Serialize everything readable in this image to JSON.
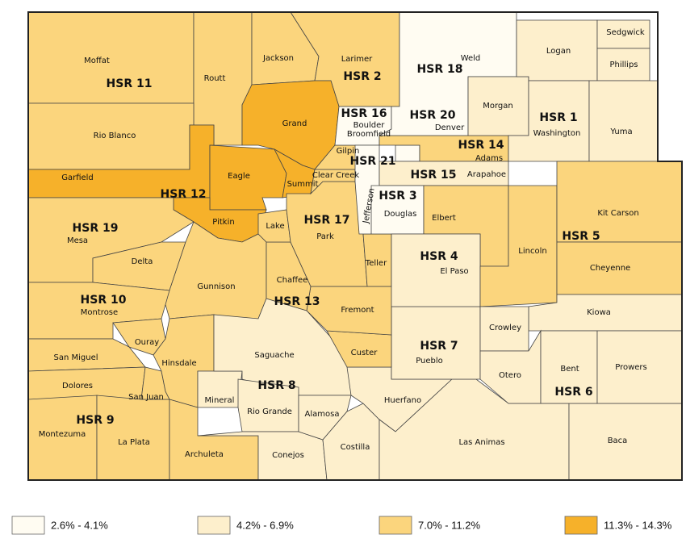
{
  "legend": [
    {
      "label": "2.6% - 4.1%",
      "color": "#fffcf2"
    },
    {
      "label": "4.2% - 6.9%",
      "color": "#fdefcc"
    },
    {
      "label": "7.0% - 11.2%",
      "color": "#fbd57d"
    },
    {
      "label": "11.3% - 14.3%",
      "color": "#f6b12a"
    }
  ],
  "counties": [
    {
      "name": "Moffat",
      "class": 2
    },
    {
      "name": "Routt",
      "class": 2
    },
    {
      "name": "Rio Blanco",
      "class": 2
    },
    {
      "name": "Garfield",
      "class": 3
    },
    {
      "name": "Jackson",
      "class": 2
    },
    {
      "name": "Larimer",
      "class": 2
    },
    {
      "name": "Grand",
      "class": 3
    },
    {
      "name": "Eagle",
      "class": 3
    },
    {
      "name": "Summit",
      "class": 3
    },
    {
      "name": "Pitkin",
      "class": 3
    },
    {
      "name": "Mesa",
      "class": 2
    },
    {
      "name": "Delta",
      "class": 2
    },
    {
      "name": "Gunnison",
      "class": 2
    },
    {
      "name": "Montrose",
      "class": 2
    },
    {
      "name": "Ouray",
      "class": 2
    },
    {
      "name": "San Miguel",
      "class": 2
    },
    {
      "name": "Dolores",
      "class": 2
    },
    {
      "name": "Montezuma",
      "class": 2
    },
    {
      "name": "La Plata",
      "class": 2
    },
    {
      "name": "San Juan",
      "class": 2
    },
    {
      "name": "Hinsdale",
      "class": 2
    },
    {
      "name": "Archuleta",
      "class": 2
    },
    {
      "name": "Mineral",
      "class": 1
    },
    {
      "name": "Saguache",
      "class": 1
    },
    {
      "name": "Rio Grande",
      "class": 1
    },
    {
      "name": "Conejos",
      "class": 1
    },
    {
      "name": "Alamosa",
      "class": 1
    },
    {
      "name": "Costilla",
      "class": 1
    },
    {
      "name": "Huerfano",
      "class": 1
    },
    {
      "name": "Las Animas",
      "class": 1
    },
    {
      "name": "Baca",
      "class": 1
    },
    {
      "name": "Pueblo",
      "class": 1
    },
    {
      "name": "Custer",
      "class": 2
    },
    {
      "name": "Fremont",
      "class": 2
    },
    {
      "name": "Chaffee",
      "class": 2
    },
    {
      "name": "Lake",
      "class": 2
    },
    {
      "name": "Park",
      "class": 2
    },
    {
      "name": "Teller",
      "class": 2
    },
    {
      "name": "Clear Creek",
      "class": 2
    },
    {
      "name": "Gilpin",
      "class": 2
    },
    {
      "name": "Boulder",
      "class": 0
    },
    {
      "name": "Broomfield",
      "class": 0
    },
    {
      "name": "Jefferson",
      "class": 0
    },
    {
      "name": "Denver",
      "class": 0
    },
    {
      "name": "Adams",
      "class": 2
    },
    {
      "name": "Arapahoe",
      "class": 1
    },
    {
      "name": "Douglas",
      "class": 0
    },
    {
      "name": "Weld",
      "class": 0
    },
    {
      "name": "Morgan",
      "class": 1
    },
    {
      "name": "Logan",
      "class": 1
    },
    {
      "name": "Washington",
      "class": 1
    },
    {
      "name": "Sedgwick",
      "class": 1
    },
    {
      "name": "Phillips",
      "class": 1
    },
    {
      "name": "Yuma",
      "class": 1
    },
    {
      "name": "Elbert",
      "class": 2
    },
    {
      "name": "El Paso",
      "class": 1
    },
    {
      "name": "Lincoln",
      "class": 2
    },
    {
      "name": "Kit Carson",
      "class": 2
    },
    {
      "name": "Cheyenne",
      "class": 2
    },
    {
      "name": "Kiowa",
      "class": 1
    },
    {
      "name": "Crowley",
      "class": 1
    },
    {
      "name": "Otero",
      "class": 1
    },
    {
      "name": "Bent",
      "class": 1
    },
    {
      "name": "Prowers",
      "class": 1
    }
  ],
  "regions": [
    "HSR 11",
    "HSR 2",
    "HSR 18",
    "HSR 1",
    "HSR 16",
    "HSR 20",
    "HSR 14",
    "HSR 21",
    "HSR 15",
    "HSR 3",
    "HSR 12",
    "HSR 19",
    "HSR 17",
    "HSR 5",
    "HSR 4",
    "HSR 10",
    "HSR 13",
    "HSR 7",
    "HSR 8",
    "HSR 6",
    "HSR 9"
  ]
}
